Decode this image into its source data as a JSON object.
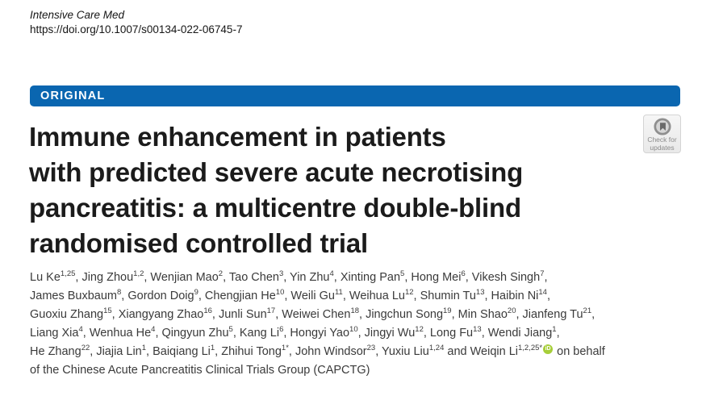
{
  "journal": {
    "name": "Intensive Care Med",
    "doi": "https://doi.org/10.1007/s00134-022-06745-7"
  },
  "banner": {
    "label": "ORIGINAL",
    "color": "#0a66b0"
  },
  "badge": {
    "line1": "Check for",
    "line2": "updates",
    "icon": "crossmark-circle-icon"
  },
  "title": {
    "lines": [
      "Immune enhancement in patients",
      "with predicted severe acute necrotising",
      "pancreatitis: a multicentre double-blind",
      "randomised controlled trial"
    ],
    "color": "#1b1b1b"
  },
  "authors": {
    "orcid_color": "#A6CE39",
    "tokens": [
      {
        "t": "Lu Ke"
      },
      {
        "s": "1,25"
      },
      {
        "t": ", Jing Zhou"
      },
      {
        "s": "1,2"
      },
      {
        "t": ", Wenjian Mao"
      },
      {
        "s": "2"
      },
      {
        "t": ", Tao Chen"
      },
      {
        "s": "3"
      },
      {
        "t": ", Yin Zhu"
      },
      {
        "s": "4"
      },
      {
        "t": ", Xinting Pan"
      },
      {
        "s": "5"
      },
      {
        "t": ", Hong Mei"
      },
      {
        "s": "6"
      },
      {
        "t": ", Vikesh Singh"
      },
      {
        "s": "7"
      },
      {
        "t": ","
      },
      {
        "br": true
      },
      {
        "t": "James Buxbaum"
      },
      {
        "s": "8"
      },
      {
        "t": ", Gordon Doig"
      },
      {
        "s": "9"
      },
      {
        "t": ", Chengjian He"
      },
      {
        "s": "10"
      },
      {
        "t": ", Weili Gu"
      },
      {
        "s": "11"
      },
      {
        "t": ", Weihua Lu"
      },
      {
        "s": "12"
      },
      {
        "t": ", Shumin Tu"
      },
      {
        "s": "13"
      },
      {
        "t": ", Haibin Ni"
      },
      {
        "s": "14"
      },
      {
        "t": ","
      },
      {
        "br": true
      },
      {
        "t": "Guoxiu Zhang"
      },
      {
        "s": "15"
      },
      {
        "t": ", Xiangyang Zhao"
      },
      {
        "s": "16"
      },
      {
        "t": ", Junli Sun"
      },
      {
        "s": "17"
      },
      {
        "t": ", Weiwei Chen"
      },
      {
        "s": "18"
      },
      {
        "t": ", Jingchun Song"
      },
      {
        "s": "19"
      },
      {
        "t": ", Min Shao"
      },
      {
        "s": "20"
      },
      {
        "t": ", Jianfeng Tu"
      },
      {
        "s": "21"
      },
      {
        "t": ","
      },
      {
        "br": true
      },
      {
        "t": "Liang Xia"
      },
      {
        "s": "4"
      },
      {
        "t": ", Wenhua He"
      },
      {
        "s": "4"
      },
      {
        "t": ", Qingyun Zhu"
      },
      {
        "s": "5"
      },
      {
        "t": ", Kang Li"
      },
      {
        "s": "6"
      },
      {
        "t": ", Hongyi Yao"
      },
      {
        "s": "10"
      },
      {
        "t": ", Jingyi Wu"
      },
      {
        "s": "12"
      },
      {
        "t": ", Long Fu"
      },
      {
        "s": "13"
      },
      {
        "t": ", Wendi Jiang"
      },
      {
        "s": "1"
      },
      {
        "t": ","
      },
      {
        "br": true
      },
      {
        "t": "He Zhang"
      },
      {
        "s": "22"
      },
      {
        "t": ", Jiajia Lin"
      },
      {
        "s": "1"
      },
      {
        "t": ", Baiqiang Li"
      },
      {
        "s": "1"
      },
      {
        "t": ", Zhihui Tong"
      },
      {
        "s": "1*"
      },
      {
        "t": ", John Windsor"
      },
      {
        "s": "23"
      },
      {
        "t": ", Yuxiu Liu"
      },
      {
        "s": "1,24"
      },
      {
        "t": " and Weiqin Li"
      },
      {
        "s": "1,2,25*"
      },
      {
        "icon": "orcid",
        "label": "iD"
      },
      {
        "t": " on behalf"
      },
      {
        "br": true
      },
      {
        "t": "of  the Chinese Acute Pancreatitis Clinical Trials Group (CAPCTG)"
      }
    ]
  }
}
